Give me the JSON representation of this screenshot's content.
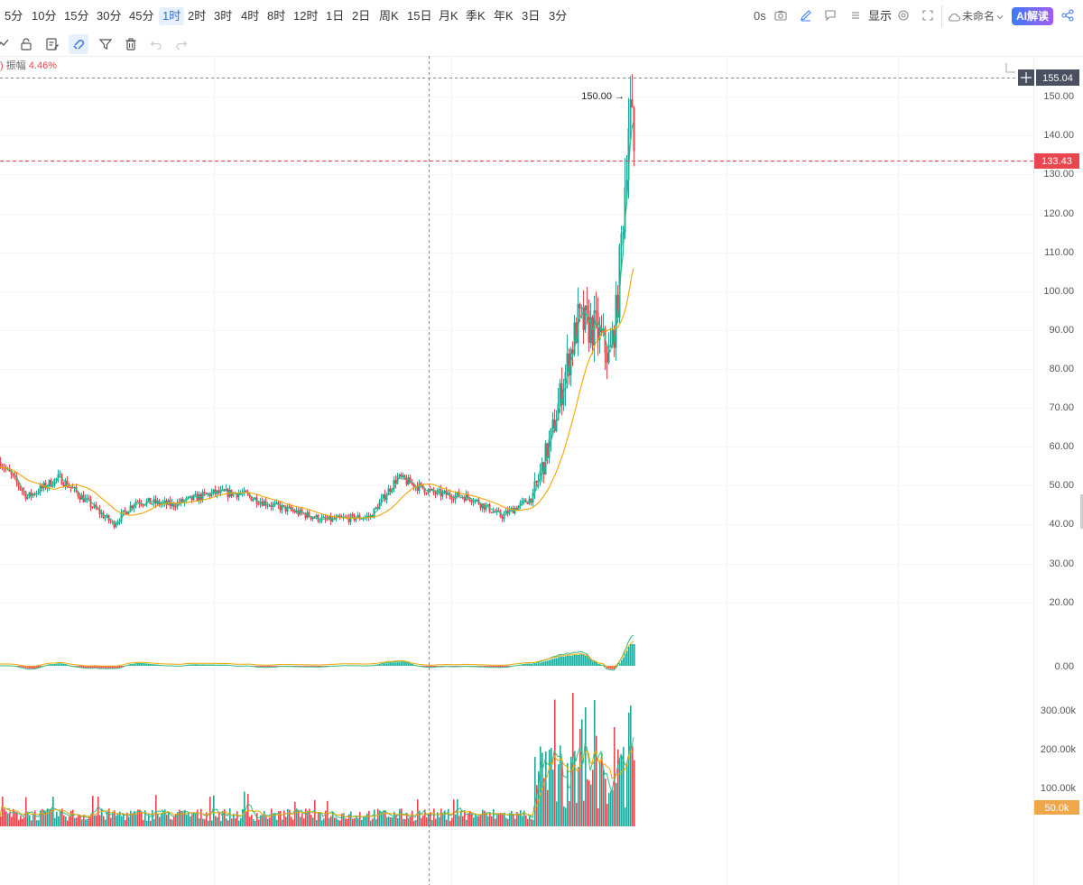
{
  "timeframes": [
    "5分",
    "10分",
    "15分",
    "30分",
    "45分",
    "1时",
    "2时",
    "3时",
    "4时",
    "8时",
    "12时",
    "1日",
    "2日",
    "周K",
    "15日",
    "月K",
    "季K",
    "年K",
    "3日",
    "3分"
  ],
  "active_timeframe": "1时",
  "right_toolbar": {
    "countdown": "0s",
    "display_label": "显示",
    "layout_name": "未命名",
    "ai_label": "AI解读"
  },
  "legend": {
    "prefix": ")",
    "label": "振幅",
    "value": "4.46%"
  },
  "price_axis": {
    "ticks": [
      "150.00",
      "140.00",
      "130.00",
      "120.00",
      "110.00",
      "100.00",
      "90.00",
      "80.00",
      "70.00",
      "60.00",
      "50.00",
      "40.00",
      "30.00",
      "20.00"
    ],
    "crosshair_price": "155.04",
    "last_price": "133.43",
    "high_marker": "150.00 →"
  },
  "macd_axis": {
    "zero": "0.00"
  },
  "volume_axis": {
    "ticks": [
      "300.00k",
      "200.00k",
      "100.00k"
    ],
    "highlight": "50.0k"
  },
  "colors": {
    "up": "#26a69a",
    "down": "#e8474f",
    "ma_fast": "#2ebd85",
    "ma_slow": "#f0a500",
    "accent": "#2f6fd6",
    "last_price_bg": "#e8474f",
    "volume_badge_bg": "#f0a74a"
  }
}
